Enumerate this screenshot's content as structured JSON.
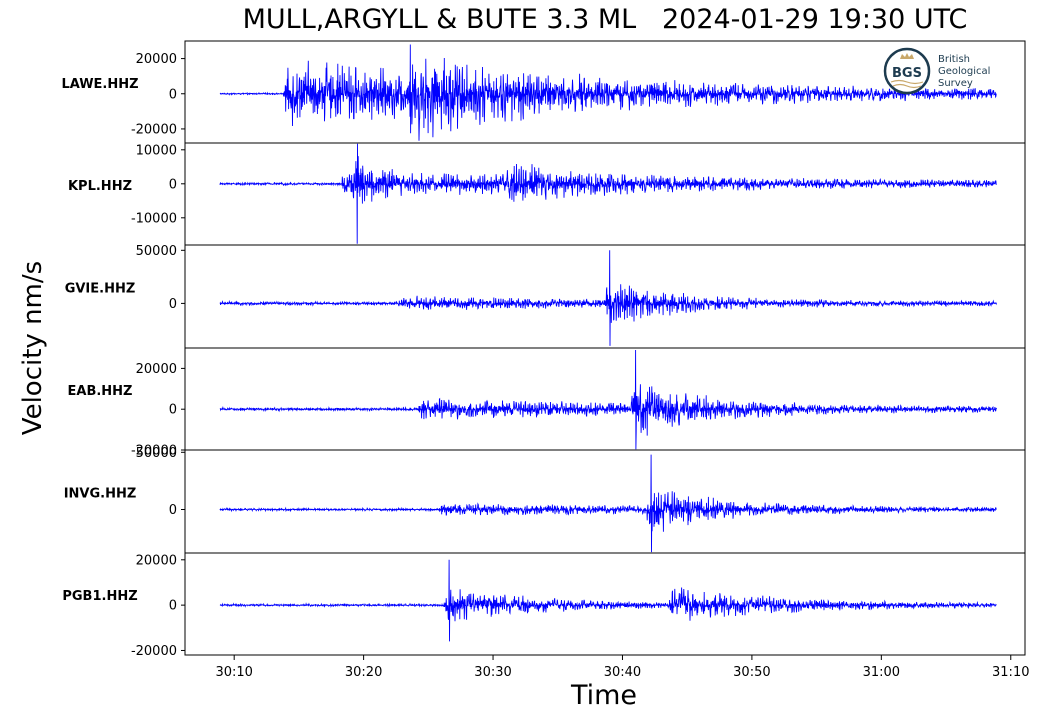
{
  "chart_data": {
    "type": "line",
    "title": "MULL,ARGYLL & BUTE 3.3 ML   2024-01-29 19:30 UTC",
    "xlabel": "Time",
    "ylabel": "Velocity nm/s",
    "x_tick_labels": [
      "30:10",
      "30:20",
      "30:30",
      "30:40",
      "30:50",
      "31:00",
      "31:10"
    ],
    "x_ticks_seconds": [
      10,
      20,
      30,
      40,
      50,
      60,
      70
    ],
    "xlim_seconds": [
      6.2,
      71.1
    ],
    "data_start_seconds": 8.9,
    "data_end_seconds": 68.9,
    "color": "#0000ff",
    "panels": [
      {
        "station": "LAWE.HHZ",
        "ylim": [
          -28000,
          30000
        ],
        "yticks": [
          20000,
          0,
          -20000
        ],
        "ytick_labels": [
          "20000",
          "0",
          "-20000"
        ],
        "pre_noise": 500,
        "arrivals": [
          {
            "t": 13.8,
            "amp": 20000,
            "decay": 28
          },
          {
            "t": 23.2,
            "amp": 15000,
            "decay": 8
          }
        ],
        "peak": 28000
      },
      {
        "station": "KPL.HHZ",
        "ylim": [
          -18000,
          12000
        ],
        "yticks": [
          10000,
          0,
          -10000
        ],
        "ytick_labels": [
          "10000",
          "0",
          "-10000"
        ],
        "pre_noise": 400,
        "arrivals": [
          {
            "t": 18.2,
            "amp": 4000,
            "decay": 30
          },
          {
            "t": 19.1,
            "amp": 7000,
            "decay": 1.2
          },
          {
            "t": 31.0,
            "amp": 4500,
            "decay": 6
          }
        ],
        "peak": -18000
      },
      {
        "station": "GVIE.HHZ",
        "ylim": [
          -42000,
          55000
        ],
        "yticks": [
          50000,
          0
        ],
        "ytick_labels": [
          "50000",
          "0"
        ],
        "pre_noise": 1800,
        "arrivals": [
          {
            "t": 22.6,
            "amp": 6000,
            "decay": 20
          },
          {
            "t": 38.6,
            "amp": 22000,
            "decay": 5
          }
        ],
        "peak": 50000
      },
      {
        "station": "EAB.HHZ",
        "ylim": [
          -20000,
          30000
        ],
        "yticks": [
          20000,
          0,
          -20000
        ],
        "ytick_labels": [
          "20000",
          "0",
          "-20000"
        ],
        "pre_noise": 800,
        "arrivals": [
          {
            "t": 24.2,
            "amp": 5000,
            "decay": 25
          },
          {
            "t": 40.6,
            "amp": 13000,
            "decay": 5
          }
        ],
        "peak": 29000
      },
      {
        "station": "INVG.HHZ",
        "ylim": [
          -38000,
          52000
        ],
        "yticks": [
          50000,
          0
        ],
        "ytick_labels": [
          "50000",
          "0"
        ],
        "pre_noise": 1200,
        "arrivals": [
          {
            "t": 25.8,
            "amp": 5000,
            "decay": 25
          },
          {
            "t": 41.8,
            "amp": 22000,
            "decay": 5
          }
        ],
        "peak": 48000
      },
      {
        "station": "PGB1.HHZ",
        "ylim": [
          -22000,
          23000
        ],
        "yticks": [
          20000,
          0,
          -20000
        ],
        "ytick_labels": [
          "20000",
          "0",
          "-20000"
        ],
        "pre_noise": 600,
        "arrivals": [
          {
            "t": 26.2,
            "amp": 9000,
            "decay": 7
          },
          {
            "t": 43.5,
            "amp": 8000,
            "decay": 9
          }
        ],
        "peak": 20000
      }
    ]
  },
  "logo": {
    "badge_text": "BGS",
    "line1": "British",
    "line2": "Geological",
    "line3": "Survey"
  }
}
